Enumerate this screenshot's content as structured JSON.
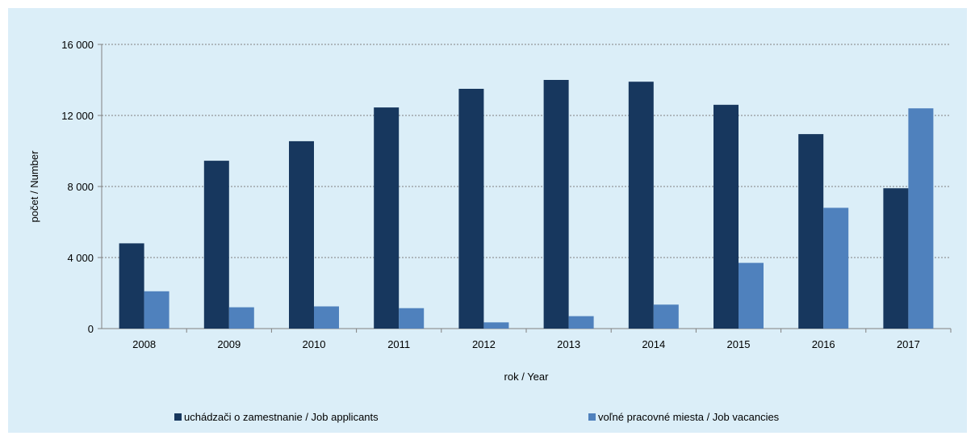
{
  "chart_data": {
    "type": "bar",
    "title": "",
    "xlabel": "rok / Year",
    "ylabel": "počet / Number",
    "categories": [
      "2008",
      "2009",
      "2010",
      "2011",
      "2012",
      "2013",
      "2014",
      "2015",
      "2016",
      "2017"
    ],
    "series": [
      {
        "name": "uchádzači o zamestnanie / Job applicants",
        "color": "#17375e",
        "values": [
          4800,
          9450,
          10550,
          12450,
          13500,
          14000,
          13900,
          12600,
          10950,
          7900
        ]
      },
      {
        "name": "voľné pracovné miesta / Job vacancies",
        "color": "#4f81bd",
        "values": [
          2100,
          1200,
          1250,
          1150,
          350,
          700,
          1350,
          3700,
          6800,
          12400
        ]
      }
    ],
    "ylim": [
      0,
      16000
    ],
    "yticks": [
      0,
      4000,
      8000,
      12000,
      16000
    ],
    "ytick_labels": [
      "0",
      "4 000",
      "8 000",
      "12 000",
      "16 000"
    ],
    "grid": true,
    "legend_position": "bottom",
    "background_color": "#dbeef8"
  }
}
